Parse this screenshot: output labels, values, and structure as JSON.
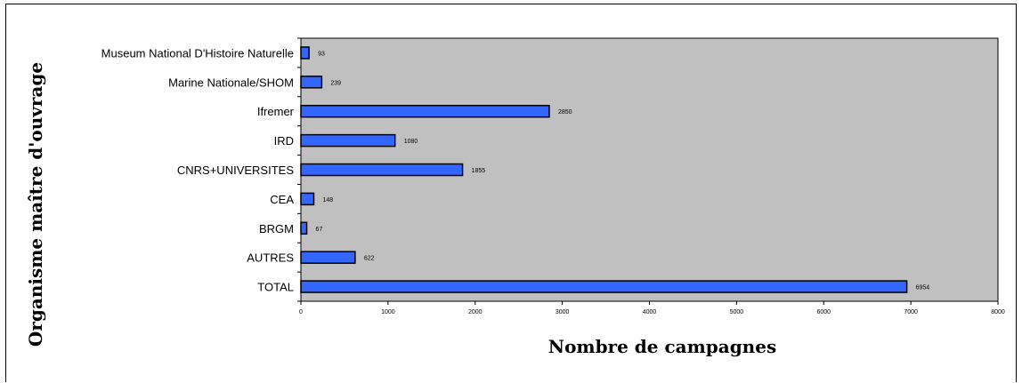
{
  "chart_data": {
    "type": "bar",
    "orientation": "horizontal",
    "categories": [
      "Museum National D'Histoire Naturelle",
      "Marine Nationale/SHOM",
      "Ifremer",
      "IRD",
      "CNRS+UNIVERSITES",
      "CEA",
      "BRGM",
      "AUTRES",
      "TOTAL"
    ],
    "values": [
      93,
      239,
      2850,
      1080,
      1855,
      148,
      67,
      622,
      6954
    ],
    "data_labels": [
      "93",
      "239",
      "2850",
      "1080",
      "1855",
      "148",
      "67",
      "622",
      "6954"
    ],
    "xlabel": "Nombre de campagnes",
    "ylabel": "Organisme maître d'ouvrage",
    "xlim": [
      0,
      8000
    ],
    "xticks": [
      0,
      1000,
      2000,
      3000,
      4000,
      5000,
      6000,
      7000,
      8000
    ],
    "xtick_labels": [
      "0",
      "1000",
      "2000",
      "3000",
      "4000",
      "5000",
      "6000",
      "7000",
      "8000"
    ],
    "grid": false,
    "legend": "none",
    "colors": {
      "bar_fill": "#3366ff",
      "bar_stroke": "#000000",
      "plot_background": "#c0c0c0"
    }
  }
}
